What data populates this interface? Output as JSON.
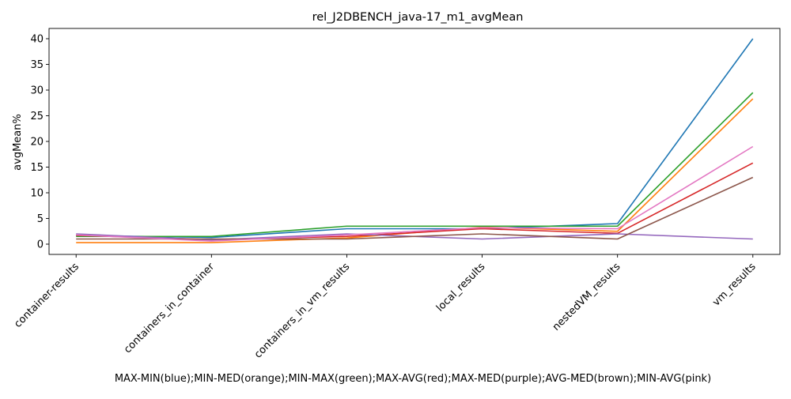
{
  "chart_data": {
    "type": "line",
    "title": "rel_J2DBENCH_java-17_m1_avgMean",
    "xlabel": "MAX-MIN(blue);MIN-MED(orange);MIN-MAX(green);MAX-AVG(red);MAX-MED(purple);AVG-MED(brown);MIN-AVG(pink)",
    "ylabel": "avgMean%",
    "categories": [
      "container-results",
      "containers_in_container",
      "containers_in_vm_results",
      "local_results",
      "nestedVM_results",
      "vm_results"
    ],
    "ylim": [
      -2,
      42
    ],
    "yticks": [
      0,
      5,
      10,
      15,
      20,
      25,
      30,
      35,
      40
    ],
    "grid": false,
    "series": [
      {
        "color": "#1f77b4",
        "values": [
          1.7,
          1.3,
          3.0,
          3.0,
          4.0,
          40.0
        ]
      },
      {
        "color": "#ff7f0e",
        "values": [
          0.3,
          0.3,
          1.2,
          3.3,
          2.5,
          28.3
        ]
      },
      {
        "color": "#2ca02c",
        "values": [
          1.5,
          1.5,
          3.5,
          3.5,
          3.5,
          29.5
        ]
      },
      {
        "color": "#d62728",
        "values": [
          1.7,
          0.9,
          1.5,
          3.0,
          2.1,
          15.8
        ]
      },
      {
        "color": "#9467bd",
        "values": [
          2.0,
          0.8,
          2.0,
          1.0,
          2.0,
          1.0
        ]
      },
      {
        "color": "#8c564b",
        "values": [
          1.0,
          1.0,
          1.0,
          2.0,
          1.0,
          13.0
        ]
      },
      {
        "color": "#e377c2",
        "values": [
          1.8,
          0.6,
          1.8,
          3.2,
          3.0,
          19.0
        ]
      }
    ]
  }
}
